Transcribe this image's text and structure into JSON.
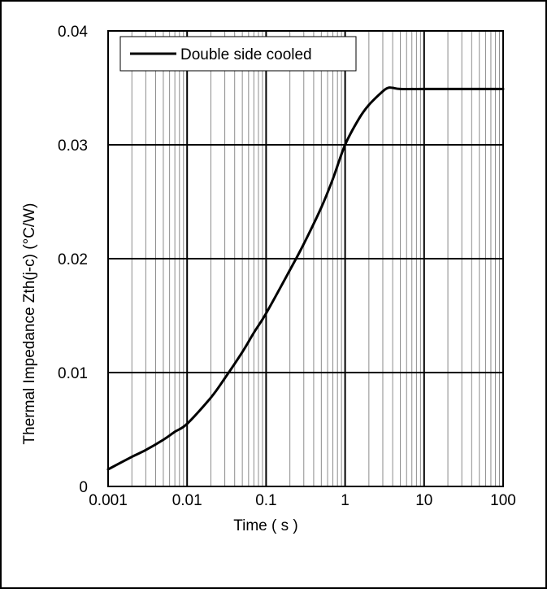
{
  "chart_data": {
    "type": "line",
    "title": "",
    "xlabel": "Time ( s )",
    "ylabel": "Thermal Impedance  Zth(j-c)  (°C/W)",
    "x_scale": "log",
    "xlim": [
      0.001,
      100
    ],
    "ylim": [
      0,
      0.04
    ],
    "x_ticks": [
      0.001,
      0.01,
      0.1,
      1,
      10,
      100
    ],
    "x_tick_labels": [
      "0.001",
      "0.01",
      "0.1",
      "1",
      "10",
      "100"
    ],
    "y_ticks": [
      0,
      0.01,
      0.02,
      0.03,
      0.04
    ],
    "y_tick_labels": [
      "0",
      "0.01",
      "0.02",
      "0.03",
      "0.04"
    ],
    "grid": true,
    "legend_position": "top-left",
    "series": [
      {
        "name": "Double side cooled",
        "color": "#000000",
        "x": [
          0.001,
          0.002,
          0.003,
          0.005,
          0.007,
          0.01,
          0.02,
          0.03,
          0.05,
          0.07,
          0.1,
          0.2,
          0.3,
          0.5,
          0.7,
          1,
          1.5,
          2,
          3,
          3.5,
          4,
          5,
          10,
          100
        ],
        "y": [
          0.0015,
          0.0026,
          0.0032,
          0.0041,
          0.0048,
          0.0055,
          0.0078,
          0.0095,
          0.0118,
          0.0135,
          0.0152,
          0.019,
          0.0213,
          0.0245,
          0.027,
          0.03,
          0.0323,
          0.0335,
          0.0347,
          0.035,
          0.035,
          0.0349,
          0.0349,
          0.0349
        ]
      }
    ]
  }
}
